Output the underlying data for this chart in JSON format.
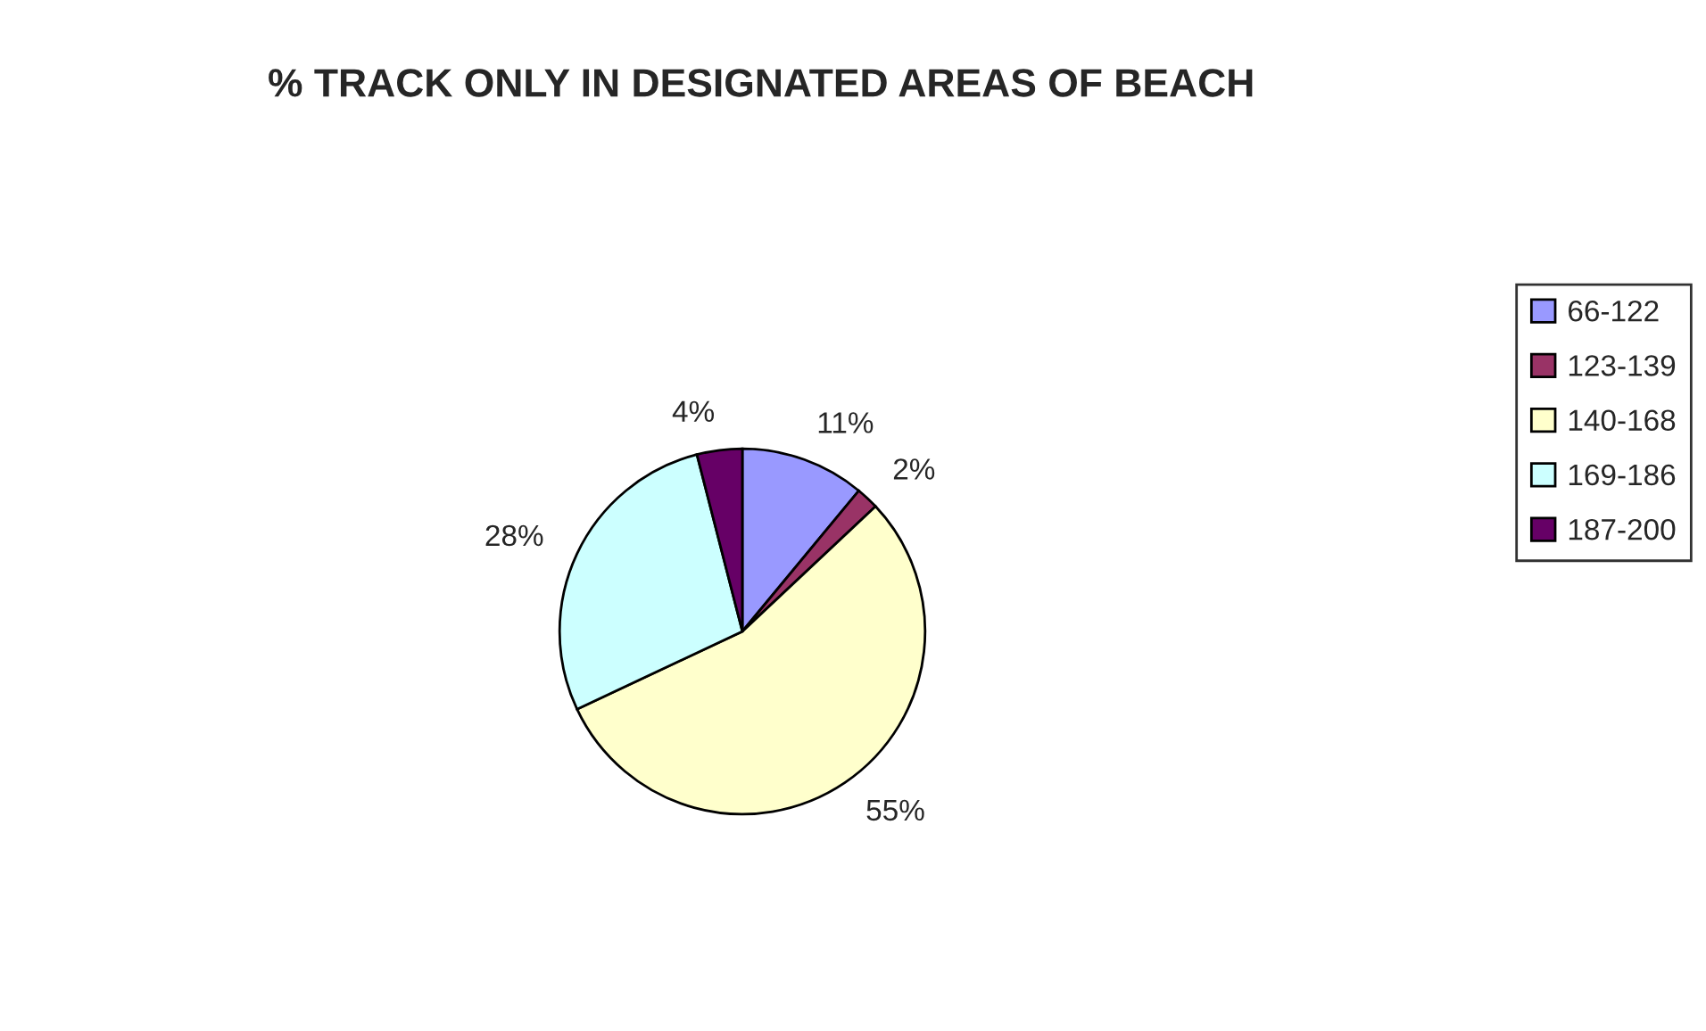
{
  "chart_data": {
    "type": "pie",
    "title": "% TRACK ONLY IN DESIGNATED AREAS OF BEACH",
    "categories": [
      "66-122",
      "123-139",
      "140-168",
      "169-186",
      "187-200"
    ],
    "values": [
      11,
      2,
      55,
      28,
      4
    ],
    "value_labels": [
      "11%",
      "2%",
      "55%",
      "28%",
      "4%"
    ],
    "colors": [
      "#9999ff",
      "#993366",
      "#ffffcc",
      "#ccffff",
      "#660066"
    ],
    "legend": "right"
  }
}
